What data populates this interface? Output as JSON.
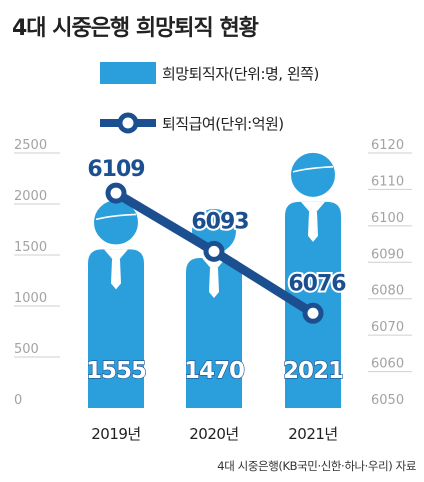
{
  "chart_data": {
    "type": "bar",
    "title": "4대 시중은행 희망퇴직 현황",
    "categories": [
      "2019년",
      "2020년",
      "2021년"
    ],
    "series": [
      {
        "name": "희망퇴직자(단위:명, 왼쪽)",
        "type": "bar",
        "axis": "left",
        "values": [
          1555,
          1470,
          2021
        ]
      },
      {
        "name": "퇴직급여(단위:억원)",
        "type": "line",
        "axis": "right",
        "values": [
          6109,
          6093,
          6076
        ]
      }
    ],
    "left_axis": {
      "ylim": [
        0,
        2500
      ],
      "ticks": [
        "0",
        "500",
        "1000",
        "1500",
        "2000",
        "2500"
      ]
    },
    "right_axis": {
      "ylim": [
        6050,
        6120
      ],
      "ticks": [
        "6050",
        "6060",
        "6070",
        "6080",
        "6090",
        "6100",
        "6110",
        "6120"
      ]
    },
    "grid": true,
    "source": "4대 시중은행(KB국민·신한·하나·우리) 자료",
    "colors": {
      "bar": "#2b9fdc",
      "line": "#1c4f8f",
      "title": "#222222",
      "grid": "#cfcfcf",
      "axis_text": "#a3a3a3"
    }
  }
}
